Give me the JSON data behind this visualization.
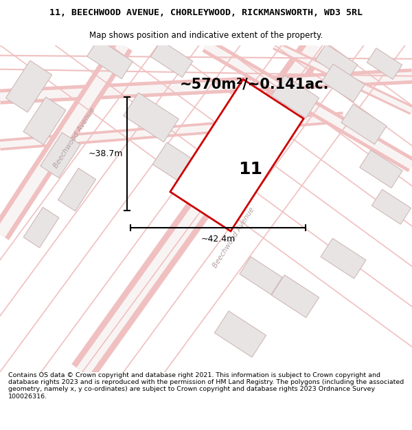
{
  "title_line1": "11, BEECHWOOD AVENUE, CHORLEYWOOD, RICKMANSWORTH, WD3 5RL",
  "title_line2": "Map shows position and indicative extent of the property.",
  "area_text": "~570m²/~0.141ac.",
  "number_label": "11",
  "dim_width": "~42.4m",
  "dim_height": "~38.7m",
  "road_label_diag": "Beechwood Avenue",
  "road_label_left": "Beechwood Avenue",
  "footer": "Contains OS data © Crown copyright and database right 2021. This information is subject to Crown copyright and database rights 2023 and is reproduced with the permission of HM Land Registry. The polygons (including the associated geometry, namely x, y co-ordinates) are subject to Crown copyright and database rights 2023 Ordnance Survey 100026316.",
  "bg_color": "#f7f4f4",
  "road_fill": "#f5eeee",
  "road_edge": "#f0c0c0",
  "building_fill": "#e8e4e4",
  "building_edge": "#d8c8c8",
  "prop_fill": "#ffffff",
  "prop_edge": "#cc0000",
  "title_fontsize": 9.5,
  "subtitle_fontsize": 8.5,
  "footer_fontsize": 6.8,
  "area_fontsize": 15,
  "number_fontsize": 18,
  "dim_fontsize": 9
}
